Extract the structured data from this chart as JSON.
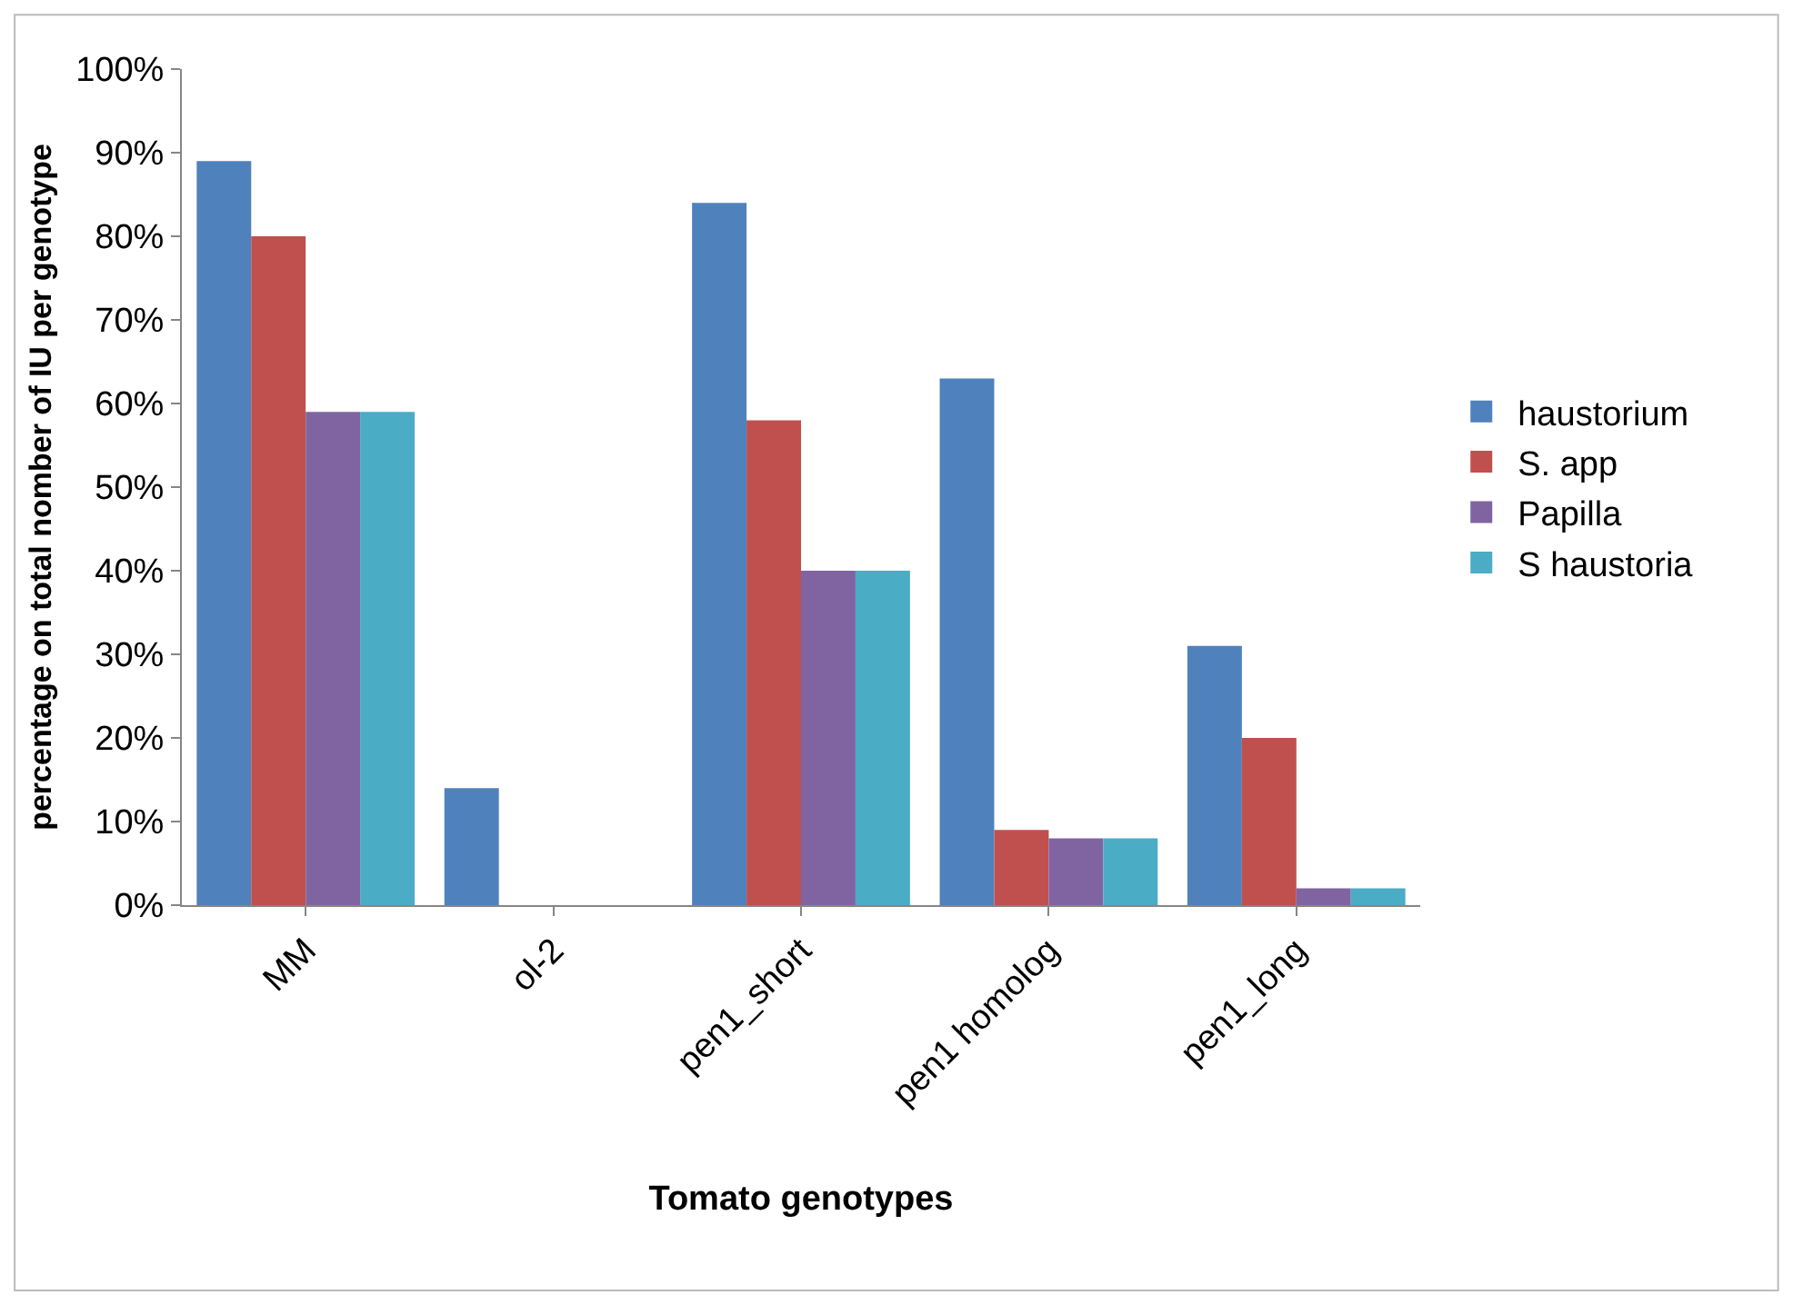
{
  "chart_data": {
    "type": "bar",
    "xlabel": "Tomato genotypes",
    "ylabel": "percentage on total nomber of IU per genotype",
    "categories": [
      "MM",
      "ol-2",
      "pen1_short",
      "pen1 homolog",
      "pen1_long"
    ],
    "series": [
      {
        "name": "haustorium",
        "color": "#4f81bd",
        "values": [
          89,
          14,
          84,
          63,
          31
        ]
      },
      {
        "name": "S. app",
        "color": "#c0504d",
        "values": [
          80,
          0,
          58,
          9,
          20
        ]
      },
      {
        "name": "Papilla",
        "color": "#8064a2",
        "values": [
          59,
          0,
          40,
          8,
          2
        ]
      },
      {
        "name": "S haustoria",
        "color": "#4bacc6",
        "values": [
          59,
          0,
          40,
          8,
          2
        ]
      }
    ],
    "ylim": [
      0,
      100
    ],
    "yticks": [
      {
        "value": 0,
        "label": "0%"
      },
      {
        "value": 10,
        "label": "10%"
      },
      {
        "value": 20,
        "label": "20%"
      },
      {
        "value": 30,
        "label": "30%"
      },
      {
        "value": 40,
        "label": "40%"
      },
      {
        "value": 50,
        "label": "50%"
      },
      {
        "value": 60,
        "label": "60%"
      },
      {
        "value": 70,
        "label": "70%"
      },
      {
        "value": 80,
        "label": "80%"
      },
      {
        "value": 90,
        "label": "90%"
      },
      {
        "value": 100,
        "label": "100%"
      }
    ],
    "legend": "right"
  }
}
